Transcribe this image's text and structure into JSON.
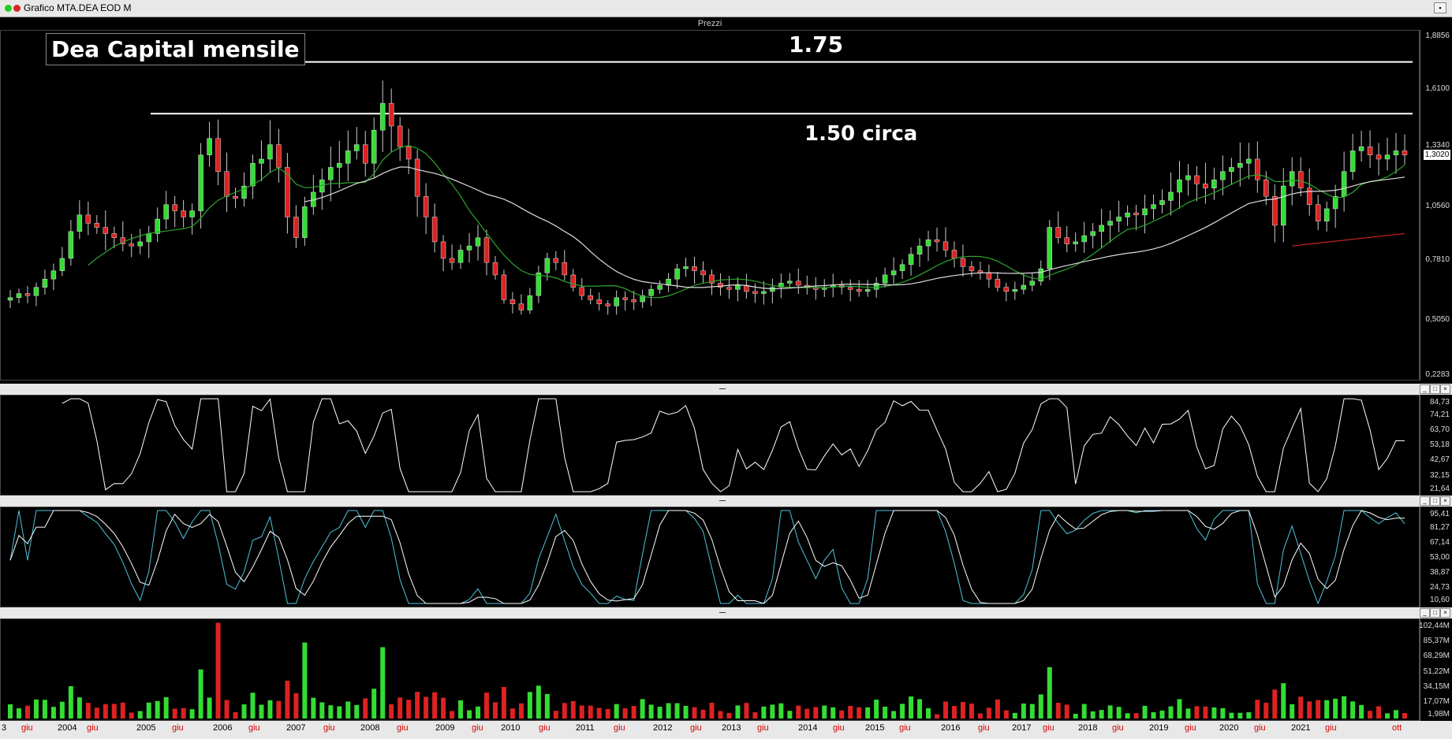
{
  "window": {
    "title": "Grafico MTA.DEA EOD M"
  },
  "pane_header": "Prezzi",
  "annotations": {
    "title": "Dea Capital mensile",
    "level_high": "1.75",
    "level_mid": "1.50 circa"
  },
  "levels": {
    "high": 1.75,
    "mid": 1.5
  },
  "price_axis": [
    "1,8856",
    "1,6100",
    "1,3340",
    "1,0560",
    "0,7810",
    "0,5050",
    "0,2283"
  ],
  "current_price": "1,3020",
  "rsi_axis": [
    "84,73",
    "74,21",
    "63,70",
    "53,18",
    "42,67",
    "32,15",
    "21,64"
  ],
  "stoch_axis": [
    "95,41",
    "81,27",
    "67,14",
    "53,00",
    "38,87",
    "24,73",
    "10,60"
  ],
  "volume_axis": [
    "102,44M",
    "85,37M",
    "68,29M",
    "51,22M",
    "34,15M",
    "17,07M",
    "1,98M"
  ],
  "time_axis": [
    {
      "label": "3",
      "red": false
    },
    {
      "label": "giu",
      "red": true
    },
    {
      "label": "2004",
      "red": false
    },
    {
      "label": "giu",
      "red": true
    },
    {
      "label": "2005",
      "red": false
    },
    {
      "label": "giu",
      "red": true
    },
    {
      "label": "2006",
      "red": false
    },
    {
      "label": "giu",
      "red": true
    },
    {
      "label": "2007",
      "red": false
    },
    {
      "label": "giu",
      "red": true
    },
    {
      "label": "2008",
      "red": false
    },
    {
      "label": "giu",
      "red": true
    },
    {
      "label": "2009",
      "red": false
    },
    {
      "label": "giu",
      "red": true
    },
    {
      "label": "2010",
      "red": false
    },
    {
      "label": "giu",
      "red": true
    },
    {
      "label": "2011",
      "red": false
    },
    {
      "label": "giu",
      "red": true
    },
    {
      "label": "2012",
      "red": false
    },
    {
      "label": "giu",
      "red": true
    },
    {
      "label": "2013",
      "red": false
    },
    {
      "label": "giu",
      "red": true
    },
    {
      "label": "2014",
      "red": false
    },
    {
      "label": "giu",
      "red": true
    },
    {
      "label": "2015",
      "red": false
    },
    {
      "label": "giu",
      "red": true
    },
    {
      "label": "2016",
      "red": false
    },
    {
      "label": "giu",
      "red": true
    },
    {
      "label": "2017",
      "red": false
    },
    {
      "label": "giu",
      "red": true
    },
    {
      "label": "2018",
      "red": false
    },
    {
      "label": "giu",
      "red": true
    },
    {
      "label": "2019",
      "red": false
    },
    {
      "label": "giu",
      "red": true
    },
    {
      "label": "2020",
      "red": false
    },
    {
      "label": "giu",
      "red": true
    },
    {
      "label": "2021",
      "red": false
    },
    {
      "label": "giu",
      "red": true
    },
    {
      "label": "ott",
      "red": true
    }
  ],
  "colors": {
    "up": "#33dd33",
    "down": "#dd2222",
    "ma_fast": "#2fa52f",
    "ma_slow": "#dddddd",
    "ma_long": "#cc2222",
    "stoch_k": "#4fc3dc",
    "stoch_d": "#ffffff"
  },
  "chart_data": {
    "type": "candlestick",
    "title": "Dea Capital mensile",
    "price_range": [
      0.2283,
      1.8856
    ],
    "closes_anchor": [
      0.61,
      0.63,
      0.62,
      0.66,
      0.7,
      0.74,
      0.8,
      0.93,
      1.01,
      0.97,
      0.95,
      0.92,
      0.9,
      0.87,
      0.86,
      0.88,
      0.92,
      0.99,
      1.06,
      1.03,
      1.0,
      1.03,
      1.3,
      1.38,
      1.22,
      1.1,
      1.09,
      1.15,
      1.26,
      1.28,
      1.35,
      1.24,
      1.0,
      0.9,
      1.05,
      1.12,
      1.18,
      1.24,
      1.26,
      1.32,
      1.35,
      1.26,
      1.42,
      1.55,
      1.44,
      1.34,
      1.28,
      1.1,
      1.0,
      0.88,
      0.8,
      0.78,
      0.84,
      0.86,
      0.9,
      0.78,
      0.72,
      0.6,
      0.58,
      0.55,
      0.62,
      0.73,
      0.8,
      0.78,
      0.72,
      0.66,
      0.62,
      0.6,
      0.58,
      0.57,
      0.61,
      0.6,
      0.59,
      0.62,
      0.65,
      0.67,
      0.7,
      0.75,
      0.76,
      0.74,
      0.72,
      0.68,
      0.66,
      0.65,
      0.67,
      0.64,
      0.63,
      0.64,
      0.66,
      0.68,
      0.69,
      0.67,
      0.66,
      0.65,
      0.66,
      0.67,
      0.66,
      0.65,
      0.64,
      0.65,
      0.68,
      0.72,
      0.74,
      0.77,
      0.82,
      0.86,
      0.89,
      0.88,
      0.84,
      0.8,
      0.76,
      0.74,
      0.73,
      0.7,
      0.66,
      0.64,
      0.65,
      0.67,
      0.69,
      0.75,
      0.95,
      0.9,
      0.87,
      0.88,
      0.91,
      0.93,
      0.96,
      0.98,
      1.0,
      1.02,
      1.01,
      1.04,
      1.06,
      1.08,
      1.12,
      1.18,
      1.2,
      1.16,
      1.14,
      1.18,
      1.22,
      1.24,
      1.26,
      1.28,
      1.18,
      1.1,
      0.96,
      1.15,
      1.22,
      1.14,
      1.06,
      0.98,
      1.04,
      1.1,
      1.22,
      1.32,
      1.34,
      1.3,
      1.28,
      1.3,
      1.32,
      1.3
    ]
  }
}
